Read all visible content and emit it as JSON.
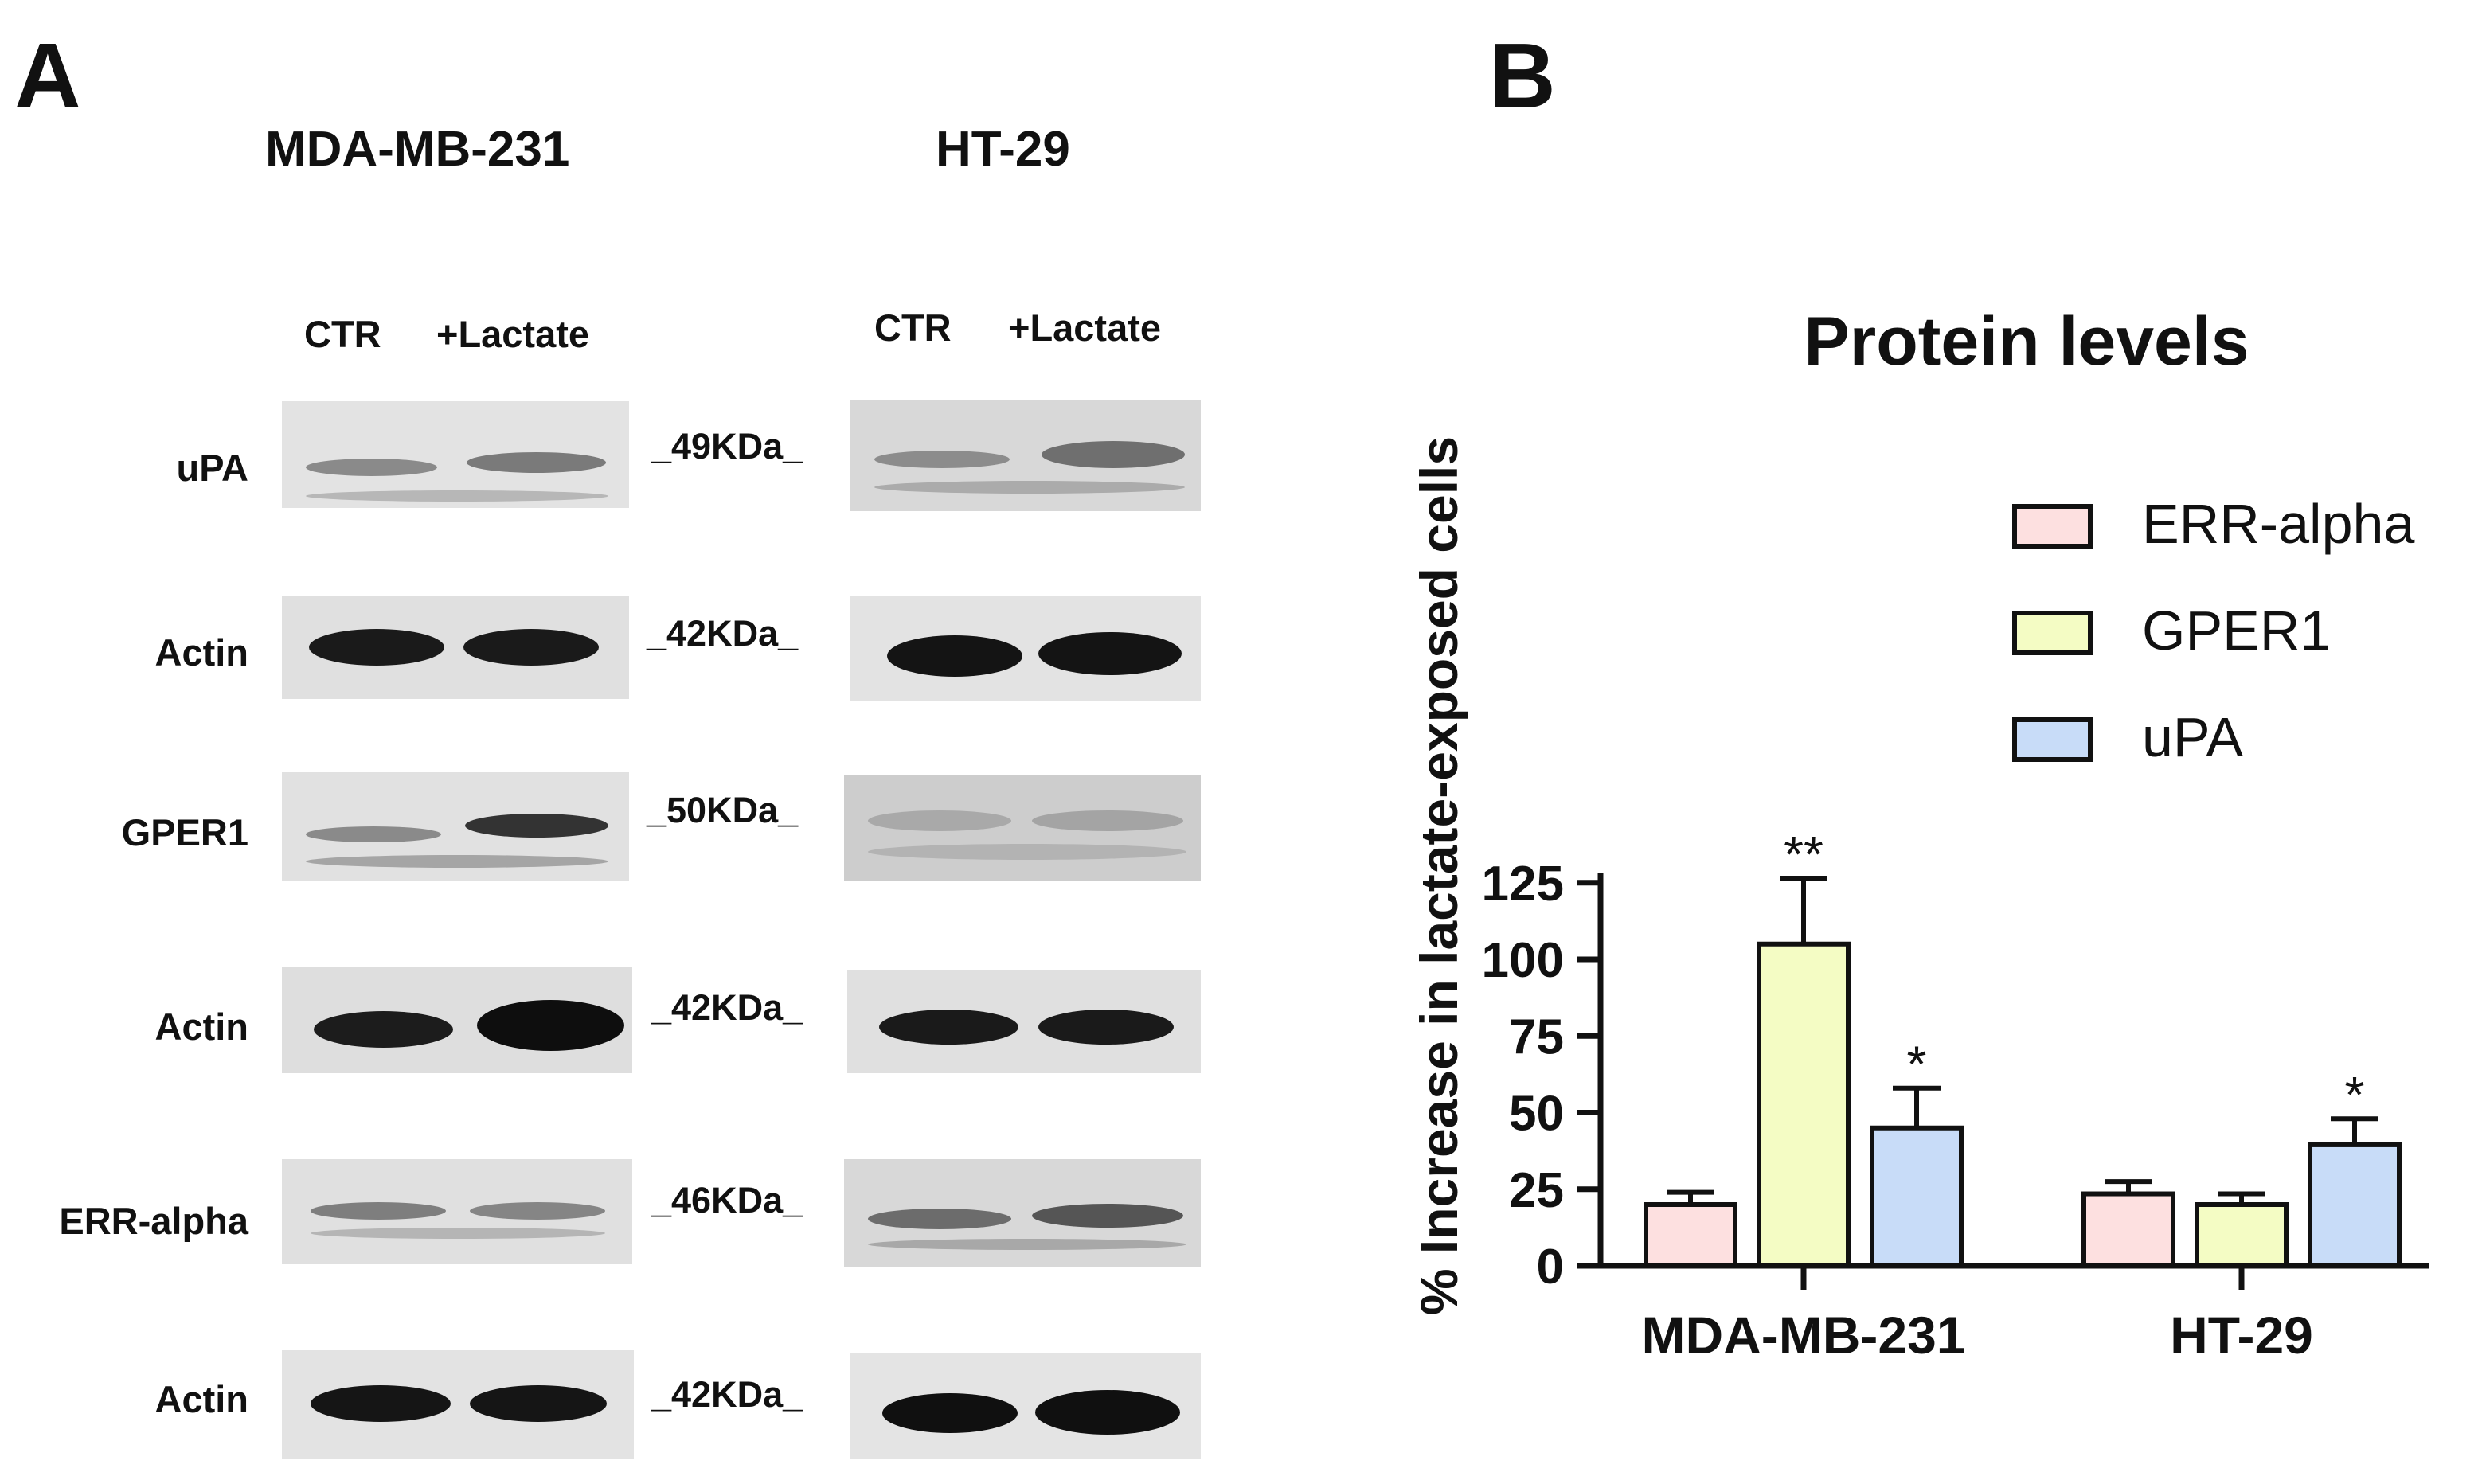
{
  "panel_a": {
    "letter": "A",
    "cell_lines": [
      "MDA-MB-231",
      "HT-29"
    ],
    "lanes": [
      "CTR",
      "+Lactate"
    ],
    "rows": [
      {
        "protein": "uPA",
        "mw": "_49KDa_"
      },
      {
        "protein": "Actin",
        "mw": "_42KDa_"
      },
      {
        "protein": "GPER1",
        "mw": "_50KDa_"
      },
      {
        "protein": "Actin",
        "mw": "_42KDa_"
      },
      {
        "protein": "ERR-alpha",
        "mw": "_46KDa_"
      },
      {
        "protein": "Actin",
        "mw": "_42KDa_"
      }
    ]
  },
  "panel_b": {
    "letter": "B"
  },
  "chart_data": {
    "type": "bar",
    "title": "Protein levels",
    "ylabel": "% Increase in lactate-exposed cells",
    "xlabel": "",
    "ylim": [
      0,
      130
    ],
    "yticks": [
      "0",
      "25",
      "50",
      "75",
      "100",
      "125"
    ],
    "ytick_values": [
      0,
      25,
      50,
      75,
      100,
      125
    ],
    "categories": [
      "MDA-MB-231",
      "HT-29"
    ],
    "legend_position": "top-right",
    "series": [
      {
        "name": "ERR-alpha",
        "color": "#fde0e0",
        "values": [
          20,
          23.5
        ],
        "errors": [
          4,
          4
        ],
        "sig": [
          "",
          ""
        ]
      },
      {
        "name": "GPER1",
        "color": "#f4fcc4",
        "values": [
          105,
          20
        ],
        "errors": [
          21.5,
          3.5
        ],
        "sig": [
          "**",
          ""
        ]
      },
      {
        "name": "uPA",
        "color": "#c8dcf8",
        "values": [
          45,
          39.5
        ],
        "errors": [
          13,
          8.5
        ],
        "sig": [
          "*",
          "*"
        ]
      }
    ]
  }
}
